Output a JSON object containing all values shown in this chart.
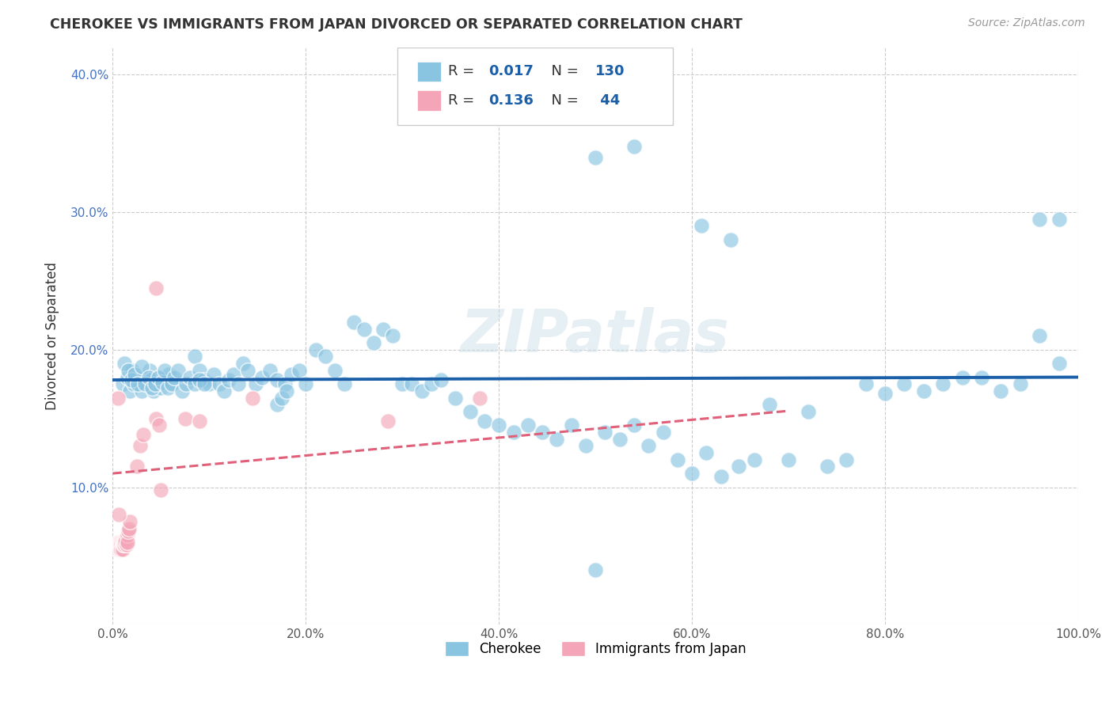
{
  "title": "CHEROKEE VS IMMIGRANTS FROM JAPAN DIVORCED OR SEPARATED CORRELATION CHART",
  "source_text": "Source: ZipAtlas.com",
  "ylabel": "Divorced or Separated",
  "xlim": [
    0.0,
    1.0
  ],
  "ylim": [
    0.0,
    0.42
  ],
  "xticks": [
    0.0,
    0.2,
    0.4,
    0.6,
    0.8,
    1.0
  ],
  "xticklabels": [
    "0.0%",
    "20.0%",
    "40.0%",
    "60.0%",
    "80.0%",
    "100.0%"
  ],
  "yticks": [
    0.0,
    0.1,
    0.2,
    0.3,
    0.4
  ],
  "yticklabels": [
    "",
    "10.0%",
    "20.0%",
    "30.0%",
    "40.0%"
  ],
  "watermark": "ZIPatlas",
  "legend_bottom_cherokee": "Cherokee",
  "legend_bottom_japan": "Immigrants from Japan",
  "cherokee_color": "#89c4e1",
  "japan_color": "#f4a6b8",
  "cherokee_line_color": "#1a5fa8",
  "japan_line_color": "#e0607a",
  "background_color": "#ffffff",
  "grid_color": "#cccccc",
  "title_color": "#333333",
  "cherokee_intercept": 0.178,
  "cherokee_slope": 0.002,
  "japan_intercept": 0.11,
  "japan_slope": 0.065,
  "japan_line_xmax": 0.7,
  "cherokee_points_x": [
    0.01,
    0.015,
    0.018,
    0.02,
    0.022,
    0.025,
    0.028,
    0.03,
    0.032,
    0.035,
    0.038,
    0.04,
    0.042,
    0.045,
    0.048,
    0.05,
    0.052,
    0.055,
    0.058,
    0.06,
    0.012,
    0.016,
    0.019,
    0.023,
    0.026,
    0.03,
    0.033,
    0.037,
    0.041,
    0.044,
    0.047,
    0.051,
    0.054,
    0.057,
    0.061,
    0.064,
    0.068,
    0.072,
    0.076,
    0.08,
    0.085,
    0.09,
    0.095,
    0.1,
    0.105,
    0.11,
    0.115,
    0.12,
    0.125,
    0.13,
    0.135,
    0.14,
    0.148,
    0.155,
    0.163,
    0.17,
    0.178,
    0.185,
    0.193,
    0.2,
    0.21,
    0.22,
    0.23,
    0.24,
    0.25,
    0.26,
    0.27,
    0.28,
    0.29,
    0.3,
    0.31,
    0.32,
    0.33,
    0.34,
    0.355,
    0.37,
    0.385,
    0.4,
    0.415,
    0.43,
    0.445,
    0.46,
    0.475,
    0.49,
    0.51,
    0.525,
    0.54,
    0.555,
    0.57,
    0.585,
    0.6,
    0.615,
    0.63,
    0.648,
    0.665,
    0.68,
    0.7,
    0.72,
    0.74,
    0.76,
    0.78,
    0.8,
    0.82,
    0.84,
    0.86,
    0.88,
    0.9,
    0.92,
    0.94,
    0.96,
    0.98,
    0.085,
    0.09,
    0.095,
    0.17,
    0.175,
    0.18,
    0.5,
    0.54,
    0.61,
    0.64,
    0.96,
    0.98,
    0.5
  ],
  "cherokee_points_y": [
    0.175,
    0.18,
    0.17,
    0.185,
    0.175,
    0.18,
    0.175,
    0.17,
    0.18,
    0.175,
    0.185,
    0.178,
    0.17,
    0.175,
    0.18,
    0.172,
    0.175,
    0.178,
    0.182,
    0.176,
    0.19,
    0.185,
    0.178,
    0.182,
    0.175,
    0.188,
    0.175,
    0.18,
    0.172,
    0.175,
    0.18,
    0.176,
    0.185,
    0.172,
    0.175,
    0.18,
    0.185,
    0.17,
    0.175,
    0.18,
    0.195,
    0.185,
    0.178,
    0.175,
    0.182,
    0.175,
    0.17,
    0.178,
    0.182,
    0.175,
    0.19,
    0.185,
    0.175,
    0.18,
    0.185,
    0.178,
    0.175,
    0.182,
    0.185,
    0.175,
    0.2,
    0.195,
    0.185,
    0.175,
    0.22,
    0.215,
    0.205,
    0.215,
    0.21,
    0.175,
    0.175,
    0.17,
    0.175,
    0.178,
    0.165,
    0.155,
    0.148,
    0.145,
    0.14,
    0.145,
    0.14,
    0.135,
    0.145,
    0.13,
    0.14,
    0.135,
    0.145,
    0.13,
    0.14,
    0.12,
    0.11,
    0.125,
    0.108,
    0.115,
    0.12,
    0.16,
    0.12,
    0.155,
    0.115,
    0.12,
    0.175,
    0.168,
    0.175,
    0.17,
    0.175,
    0.18,
    0.18,
    0.17,
    0.175,
    0.21,
    0.19,
    0.175,
    0.178,
    0.175,
    0.16,
    0.165,
    0.17,
    0.34,
    0.348,
    0.29,
    0.28,
    0.295,
    0.295,
    0.04
  ],
  "japan_points_x": [
    0.003,
    0.004,
    0.005,
    0.005,
    0.006,
    0.006,
    0.007,
    0.007,
    0.007,
    0.008,
    0.008,
    0.008,
    0.009,
    0.009,
    0.009,
    0.01,
    0.01,
    0.01,
    0.011,
    0.011,
    0.012,
    0.012,
    0.013,
    0.013,
    0.014,
    0.015,
    0.015,
    0.016,
    0.017,
    0.018,
    0.025,
    0.028,
    0.032,
    0.045,
    0.048,
    0.075,
    0.09,
    0.145,
    0.285,
    0.38,
    0.045,
    0.05,
    0.005,
    0.006
  ],
  "japan_points_y": [
    0.058,
    0.058,
    0.06,
    0.055,
    0.06,
    0.058,
    0.06,
    0.058,
    0.055,
    0.06,
    0.055,
    0.058,
    0.06,
    0.058,
    0.055,
    0.058,
    0.06,
    0.055,
    0.058,
    0.06,
    0.06,
    0.058,
    0.062,
    0.06,
    0.058,
    0.065,
    0.06,
    0.068,
    0.07,
    0.075,
    0.115,
    0.13,
    0.138,
    0.15,
    0.145,
    0.15,
    0.148,
    0.165,
    0.148,
    0.165,
    0.245,
    0.098,
    0.165,
    0.08
  ]
}
